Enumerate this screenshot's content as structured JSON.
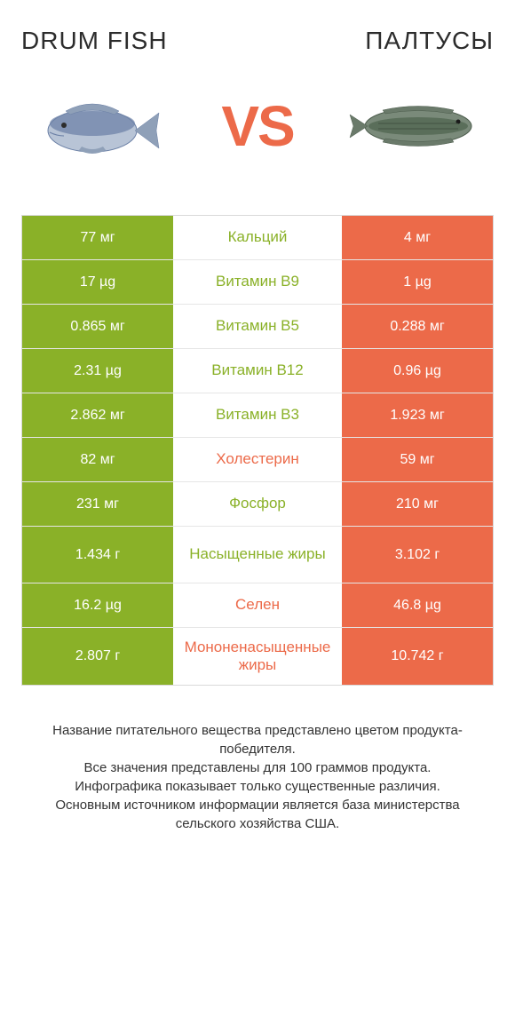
{
  "header": {
    "left_title": "Drum fish",
    "right_title": "Палтусы",
    "vs": "VS"
  },
  "colors": {
    "green": "#8ab128",
    "orange": "#ec6a49",
    "white": "#ffffff",
    "text": "#333333",
    "fish_blue": "#6a7fa5",
    "fish_green": "#5a6e5a"
  },
  "rows": [
    {
      "left": "77 мг",
      "label": "Кальций",
      "right": "4 мг",
      "winner": "left",
      "tall": false
    },
    {
      "left": "17 µg",
      "label": "Витамин B9",
      "right": "1 µg",
      "winner": "left",
      "tall": false
    },
    {
      "left": "0.865 мг",
      "label": "Витамин B5",
      "right": "0.288 мг",
      "winner": "left",
      "tall": false
    },
    {
      "left": "2.31 µg",
      "label": "Витамин B12",
      "right": "0.96 µg",
      "winner": "left",
      "tall": false
    },
    {
      "left": "2.862 мг",
      "label": "Витамин B3",
      "right": "1.923 мг",
      "winner": "left",
      "tall": false
    },
    {
      "left": "82 мг",
      "label": "Холестерин",
      "right": "59 мг",
      "winner": "right",
      "tall": false
    },
    {
      "left": "231 мг",
      "label": "Фосфор",
      "right": "210 мг",
      "winner": "left",
      "tall": false
    },
    {
      "left": "1.434 г",
      "label": "Насыщенные жиры",
      "right": "3.102 г",
      "winner": "left",
      "tall": true
    },
    {
      "left": "16.2 µg",
      "label": "Селен",
      "right": "46.8 µg",
      "winner": "right",
      "tall": false
    },
    {
      "left": "2.807 г",
      "label": "Мононенасыщенные жиры",
      "right": "10.742 г",
      "winner": "right",
      "tall": true
    }
  ],
  "footer": {
    "line1": "Название питательного вещества представлено цветом продукта-победителя.",
    "line2": "Все значения представлены для 100 граммов продукта.",
    "line3": "Инфографика показывает только существенные различия.",
    "line4": "Основным источником информации является база министерства сельского хозяйства США."
  }
}
